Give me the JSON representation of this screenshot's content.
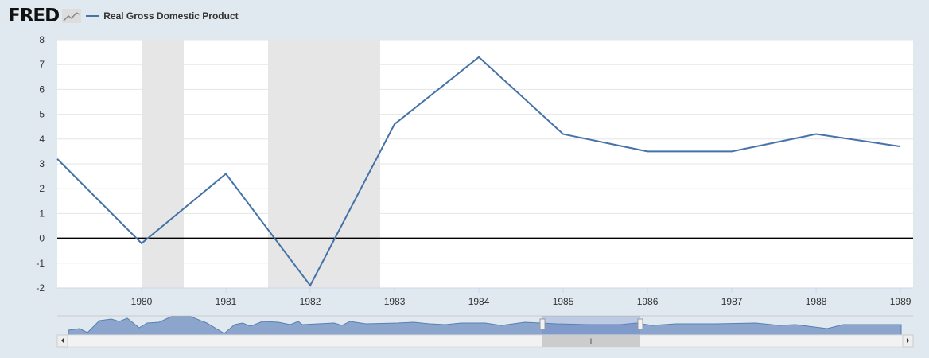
{
  "header": {
    "logo": "FRED",
    "legend_label": "Real Gross Domestic Product"
  },
  "colors": {
    "series": "#4572a7",
    "recession": "#e6e6e6",
    "zero_line": "#000000",
    "background": "#e1e9f0"
  },
  "chart_data": {
    "type": "line",
    "title": "",
    "xlabel": "",
    "ylabel": "",
    "series": [
      {
        "name": "Real Gross Domestic Product",
        "x": [
          1979,
          1980,
          1981,
          1982,
          1983,
          1984,
          1985,
          1986,
          1987,
          1988,
          1989
        ],
        "values": [
          3.2,
          -0.2,
          2.6,
          -1.9,
          4.6,
          7.3,
          4.2,
          3.5,
          3.5,
          4.2,
          3.7
        ]
      }
    ],
    "xlim": [
      1979,
      1989.15
    ],
    "ylim": [
      -2,
      8
    ],
    "yticks": [
      -2,
      -1,
      0,
      1,
      2,
      3,
      4,
      5,
      6,
      7,
      8
    ],
    "xticks": [
      "1980",
      "1981",
      "1982",
      "1983",
      "1984",
      "1985",
      "1986",
      "1987",
      "1988",
      "1989"
    ],
    "recessions": [
      [
        1980.0,
        1980.5
      ],
      [
        1981.5,
        1982.83
      ]
    ],
    "grid": true,
    "legend": "top-left"
  }
}
